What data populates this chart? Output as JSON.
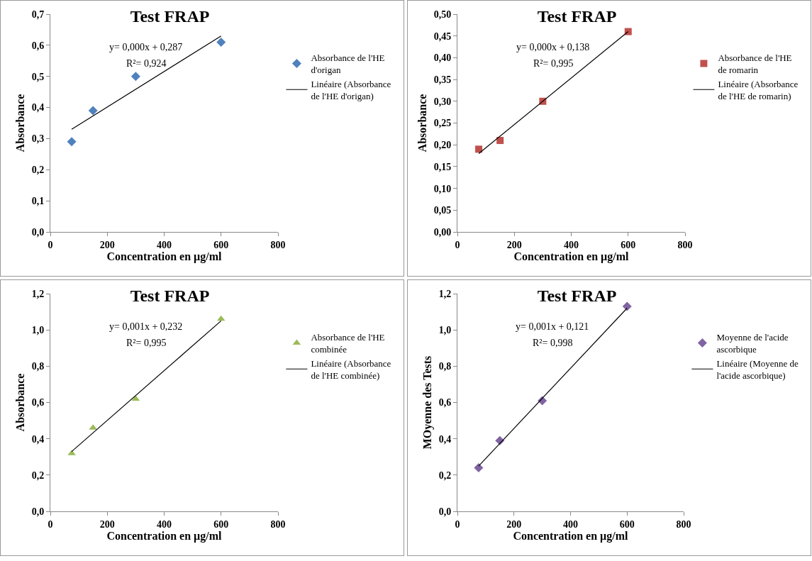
{
  "chart_data": [
    {
      "type": "scatter",
      "title": "Test FRAP",
      "xlabel": "Concentration en µg/ml",
      "ylabel": "Absorbance",
      "annotations": [
        "y= 0,000x + 0,287",
        "R²= 0,924"
      ],
      "xlim": [
        0,
        800
      ],
      "xticks": [
        0,
        200,
        400,
        600,
        800
      ],
      "ylim": [
        0,
        0.7
      ],
      "yticks": [
        {
          "value": 0,
          "label": "0,0"
        },
        {
          "value": 0.1,
          "label": "0,1"
        },
        {
          "value": 0.2,
          "label": "0,2"
        },
        {
          "value": 0.3,
          "label": "0,3"
        },
        {
          "value": 0.4,
          "label": "0,4"
        },
        {
          "value": 0.5,
          "label": "0,5"
        },
        {
          "value": 0.6,
          "label": "0,6"
        },
        {
          "value": 0.7,
          "label": "0,7"
        }
      ],
      "grid": false,
      "legend": "right",
      "series": [
        {
          "name": "Absorbance de l'HE d'origan",
          "color": "#4f81bd",
          "marker": "diamond",
          "x": [
            75,
            150,
            300,
            600
          ],
          "values": [
            0.29,
            0.39,
            0.5,
            0.61
          ]
        },
        {
          "type": "line",
          "name": "Linéaire (Absorbance de l'HE d'origan)",
          "color": "#000000",
          "marker": "none",
          "x": [
            75,
            600
          ],
          "values": [
            0.33,
            0.63
          ]
        }
      ]
    },
    {
      "type": "scatter",
      "title": "Test FRAP",
      "xlabel": "Concentration en µg/ml",
      "ylabel": "Absorbance",
      "annotations": [
        "y= 0,000x + 0,138",
        "R²= 0,995"
      ],
      "xlim": [
        0,
        800
      ],
      "xticks": [
        0,
        200,
        400,
        600,
        800
      ],
      "ylim": [
        0,
        0.5
      ],
      "yticks": [
        {
          "value": 0,
          "label": "0,00"
        },
        {
          "value": 0.05,
          "label": "0,05"
        },
        {
          "value": 0.1,
          "label": "0,10"
        },
        {
          "value": 0.15,
          "label": "0,15"
        },
        {
          "value": 0.2,
          "label": "0,20"
        },
        {
          "value": 0.25,
          "label": "0,25"
        },
        {
          "value": 0.3,
          "label": "0,30"
        },
        {
          "value": 0.35,
          "label": "0,35"
        },
        {
          "value": 0.4,
          "label": "0,40"
        },
        {
          "value": 0.45,
          "label": "0,45"
        },
        {
          "value": 0.5,
          "label": "0,50"
        }
      ],
      "grid": false,
      "legend": "right",
      "series": [
        {
          "name": "Absorbance de l'HE de romarin",
          "color": "#c0504d",
          "marker": "square",
          "x": [
            75,
            150,
            300,
            600
          ],
          "values": [
            0.19,
            0.21,
            0.3,
            0.46
          ]
        },
        {
          "type": "line",
          "name": "Linéaire (Absorbance de l'HE de romarin)",
          "color": "#000000",
          "marker": "none",
          "x": [
            75,
            600
          ],
          "values": [
            0.18,
            0.46
          ]
        }
      ]
    },
    {
      "type": "scatter",
      "title": "Test FRAP",
      "xlabel": "Concentration en µg/ml",
      "ylabel": "Absorbance",
      "annotations": [
        "y= 0,001x + 0,232",
        "R²= 0,995"
      ],
      "xlim": [
        0,
        800
      ],
      "xticks": [
        0,
        200,
        400,
        600,
        800
      ],
      "ylim": [
        0,
        1.2
      ],
      "yticks": [
        {
          "value": 0,
          "label": "0,0"
        },
        {
          "value": 0.2,
          "label": "0,2"
        },
        {
          "value": 0.4,
          "label": "0,4"
        },
        {
          "value": 0.6,
          "label": "0,6"
        },
        {
          "value": 0.8,
          "label": "0,8"
        },
        {
          "value": 1,
          "label": "1,0"
        },
        {
          "value": 1.2,
          "label": "1,2"
        }
      ],
      "grid": false,
      "legend": "right",
      "series": [
        {
          "name": "Absorbance de l'HE combinée",
          "color": "#9bbb59",
          "marker": "triangle",
          "x": [
            75,
            150,
            300,
            600
          ],
          "values": [
            0.32,
            0.46,
            0.62,
            1.06
          ]
        },
        {
          "type": "line",
          "name": "Linéaire (Absorbance de l'HE combinée)",
          "color": "#000000",
          "marker": "none",
          "x": [
            75,
            600
          ],
          "values": [
            0.33,
            1.05
          ]
        }
      ]
    },
    {
      "type": "scatter",
      "title": "Test FRAP",
      "xlabel": "Concentration en µg/ml",
      "ylabel": "MOyenne des Tests",
      "annotations": [
        "y= 0,001x + 0,121",
        "R²= 0,998"
      ],
      "xlim": [
        0,
        800
      ],
      "xticks": [
        0,
        200,
        400,
        600,
        800
      ],
      "ylim": [
        0,
        1.2
      ],
      "yticks": [
        {
          "value": 0,
          "label": "0,0"
        },
        {
          "value": 0.2,
          "label": "0,2"
        },
        {
          "value": 0.4,
          "label": "0,4"
        },
        {
          "value": 0.6,
          "label": "0,6"
        },
        {
          "value": 0.8,
          "label": "0,8"
        },
        {
          "value": 1,
          "label": "1,0"
        },
        {
          "value": 1.2,
          "label": "1,2"
        }
      ],
      "grid": false,
      "legend": "right",
      "series": [
        {
          "name": "Moyenne de l'acide ascorbique",
          "color": "#8064a2",
          "marker": "diamond",
          "x": [
            75,
            150,
            300,
            600
          ],
          "values": [
            0.24,
            0.39,
            0.61,
            1.13
          ]
        },
        {
          "type": "line",
          "name": "Linéaire (Moyenne de l'acide ascorbique)",
          "color": "#000000",
          "marker": "none",
          "x": [
            75,
            600
          ],
          "values": [
            0.25,
            1.12
          ]
        }
      ]
    }
  ]
}
